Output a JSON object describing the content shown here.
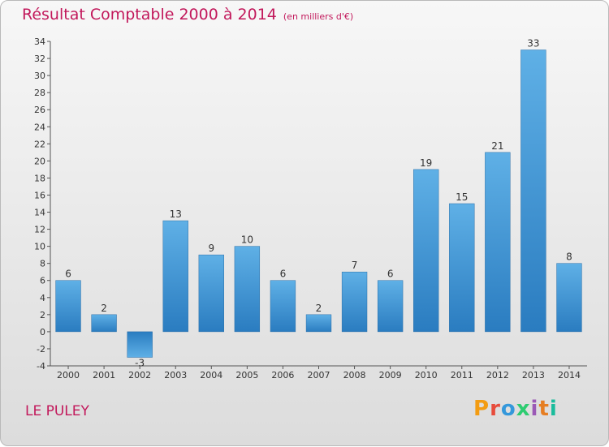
{
  "header": {
    "title": "Résultat Comptable 2000 à 2014",
    "subtitle": "(en milliers d'€)"
  },
  "footer": {
    "commune": "LE PULEY",
    "logo": "Proxiti"
  },
  "colors": {
    "title": "#c2185b",
    "bar_light": "#5dade2",
    "bar_dark": "#1f78b4",
    "logo": [
      "#f39c12",
      "#e74c3c",
      "#3498db",
      "#2ecc71",
      "#9b59b6",
      "#e67e22",
      "#1abc9c"
    ]
  },
  "chart_data": {
    "type": "bar",
    "categories": [
      "2000",
      "2001",
      "2002",
      "2003",
      "2004",
      "2005",
      "2006",
      "2007",
      "2008",
      "2009",
      "2010",
      "2011",
      "2012",
      "2013",
      "2014"
    ],
    "values": [
      6,
      2,
      -3,
      13,
      9,
      10,
      6,
      2,
      7,
      6,
      19,
      15,
      21,
      33,
      8
    ],
    "ylim": [
      -4,
      34
    ],
    "yticks": [
      -4,
      -2,
      0,
      2,
      4,
      6,
      8,
      10,
      12,
      14,
      16,
      18,
      20,
      22,
      24,
      26,
      28,
      30,
      32,
      34
    ],
    "grid": false,
    "data_labels": true
  }
}
